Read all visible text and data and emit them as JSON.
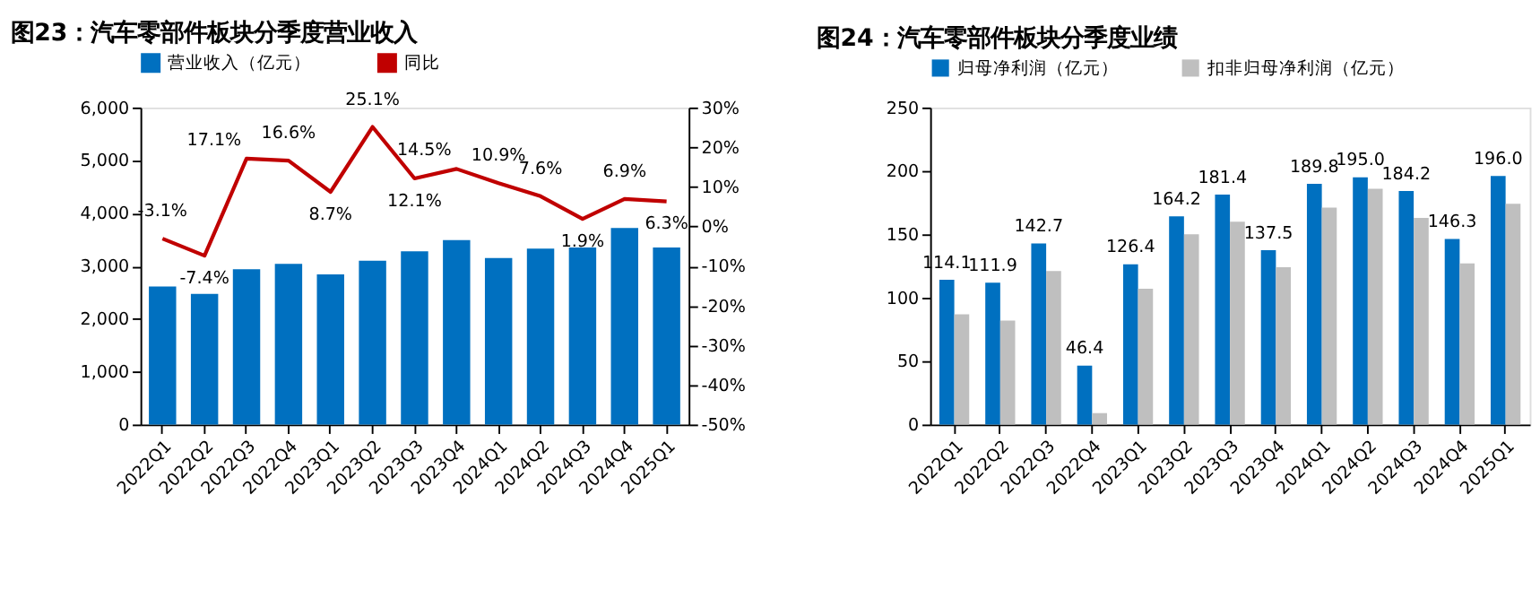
{
  "chart_data": [
    {
      "type": "bar",
      "title": "图23：汽车零部件板块分季度营业收入",
      "categories": [
        "2022Q1",
        "2022Q2",
        "2022Q3",
        "2022Q4",
        "2023Q1",
        "2023Q2",
        "2023Q3",
        "2023Q4",
        "2024Q1",
        "2024Q2",
        "2024Q3",
        "2024Q4",
        "2025Q1"
      ],
      "series": [
        {
          "name": "营业收入（亿元）",
          "color": "#0070c0",
          "values": [
            2610,
            2470,
            2940,
            3040,
            2840,
            3100,
            3280,
            3490,
            3150,
            3330,
            3350,
            3720,
            3350
          ]
        },
        {
          "name": "同比",
          "type": "line",
          "axis": "y2",
          "color": "#c00000",
          "values": [
            -3.1,
            -7.4,
            17.1,
            16.6,
            8.7,
            25.1,
            12.1,
            14.5,
            10.9,
            7.6,
            1.9,
            6.9,
            6.3
          ],
          "value_labels": [
            "-3.1%",
            "-7.4%",
            "17.1%",
            "16.6%",
            "8.7%",
            "25.1%",
            "12.1%",
            "14.5%",
            "10.9%",
            "7.6%",
            "1.9%",
            "6.9%",
            "6.3%"
          ]
        }
      ],
      "ylim": [
        0,
        6000
      ],
      "yticks": [
        {
          "value": 0,
          "label": "0"
        },
        {
          "value": 1000,
          "label": "1,000"
        },
        {
          "value": 2000,
          "label": "2,000"
        },
        {
          "value": 3000,
          "label": "3,000"
        },
        {
          "value": 4000,
          "label": "4,000"
        },
        {
          "value": 5000,
          "label": "5,000"
        },
        {
          "value": 6000,
          "label": "6,000"
        }
      ],
      "y2lim": [
        -50,
        30
      ],
      "y2ticks": [
        {
          "value": -50,
          "label": "-50%"
        },
        {
          "value": -40,
          "label": "-40%"
        },
        {
          "value": -30,
          "label": "-30%"
        },
        {
          "value": -20,
          "label": "-20%"
        },
        {
          "value": -10,
          "label": "-10%"
        },
        {
          "value": 0,
          "label": "0%"
        },
        {
          "value": 10,
          "label": "10%"
        },
        {
          "value": 20,
          "label": "20%"
        },
        {
          "value": 30,
          "label": "30%"
        }
      ],
      "legend": "top",
      "grid": false
    },
    {
      "type": "bar",
      "title": "图24：汽车零部件板块分季度业绩",
      "categories": [
        "2022Q1",
        "2022Q2",
        "2022Q3",
        "2022Q4",
        "2023Q1",
        "2023Q2",
        "2023Q3",
        "2023Q4",
        "2024Q1",
        "2024Q2",
        "2024Q3",
        "2024Q4",
        "2025Q1"
      ],
      "series": [
        {
          "name": "归母净利润（亿元）",
          "color": "#0070c0",
          "values": [
            114.1,
            111.9,
            142.7,
            46.4,
            126.4,
            164.2,
            181.4,
            137.5,
            189.8,
            195.0,
            184.2,
            146.3,
            196.0
          ],
          "value_labels": [
            "114.1",
            "111.9",
            "142.7",
            "46.4",
            "126.4",
            "164.2",
            "181.4",
            "137.5",
            "189.8",
            "195.0",
            "184.2",
            "146.3",
            "196.0"
          ]
        },
        {
          "name": "扣非归母净利润（亿元）",
          "color": "#bfbfbf",
          "values": [
            87,
            82,
            121,
            9,
            107,
            150,
            160,
            124,
            171,
            186,
            163,
            127,
            174
          ]
        }
      ],
      "ylim": [
        0,
        250
      ],
      "yticks": [
        0,
        50,
        100,
        150,
        200,
        250
      ],
      "legend": "top",
      "grid": false
    }
  ]
}
